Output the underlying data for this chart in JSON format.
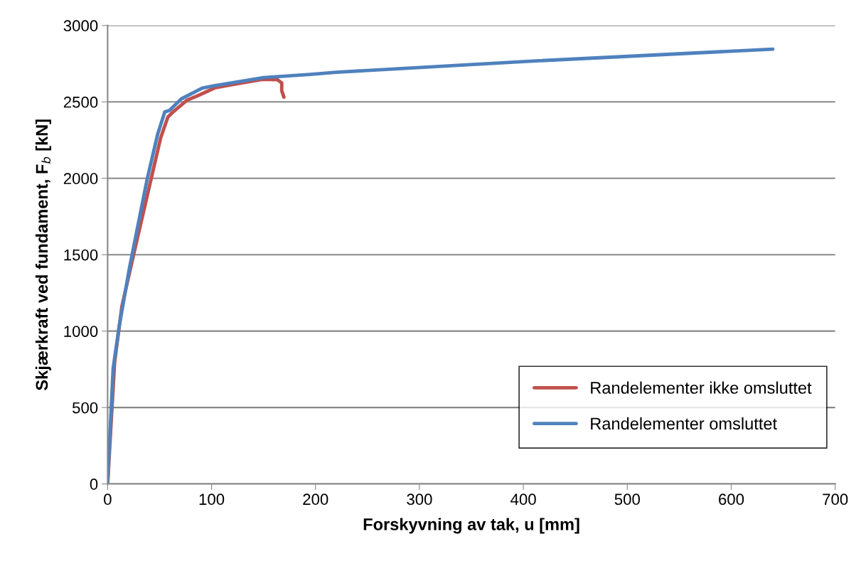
{
  "chart_data": {
    "type": "line",
    "xlabel": "Forskyvning av tak, u [mm]",
    "ylabel": "Skjærkraft ved fundament, F$_{b}$ [kN]",
    "xlim": [
      0,
      700
    ],
    "xticks": [
      0,
      100,
      200,
      300,
      400,
      500,
      600,
      700
    ],
    "ylim": [
      0,
      3000
    ],
    "yticks": [
      0,
      500,
      1000,
      1500,
      2000,
      2500,
      3000
    ],
    "grid": "y",
    "legend": "bottom right",
    "marker": "none",
    "line_style": "solid",
    "series": [
      {
        "name": "Randelementer ikke omsluttet",
        "color": "#c0504d",
        "x": [
          0,
          6.7,
          13.7,
          26.6,
          42.4,
          51,
          58,
          63.6,
          76.6,
          86.5,
          103.6,
          117.5,
          149,
          163.4,
          167.5,
          167.5,
          169.6
        ],
        "values": [
          0,
          794,
          1161,
          1548,
          2012,
          2264,
          2401,
          2438,
          2512,
          2540,
          2593,
          2610,
          2647,
          2645,
          2624,
          2573,
          2531
        ]
      },
      {
        "name": "Randelementer omsluttet",
        "color": "#4f81bd",
        "x": [
          0,
          5.3,
          11,
          21,
          38,
          48,
          55,
          59.5,
          71,
          91,
          103.5,
          150,
          195,
          220,
          403,
          640
        ],
        "values": [
          0,
          755,
          1026,
          1413,
          1993,
          2285,
          2435,
          2444,
          2520,
          2590,
          2607,
          2659,
          2680,
          2694,
          2765,
          2845
        ]
      }
    ]
  }
}
